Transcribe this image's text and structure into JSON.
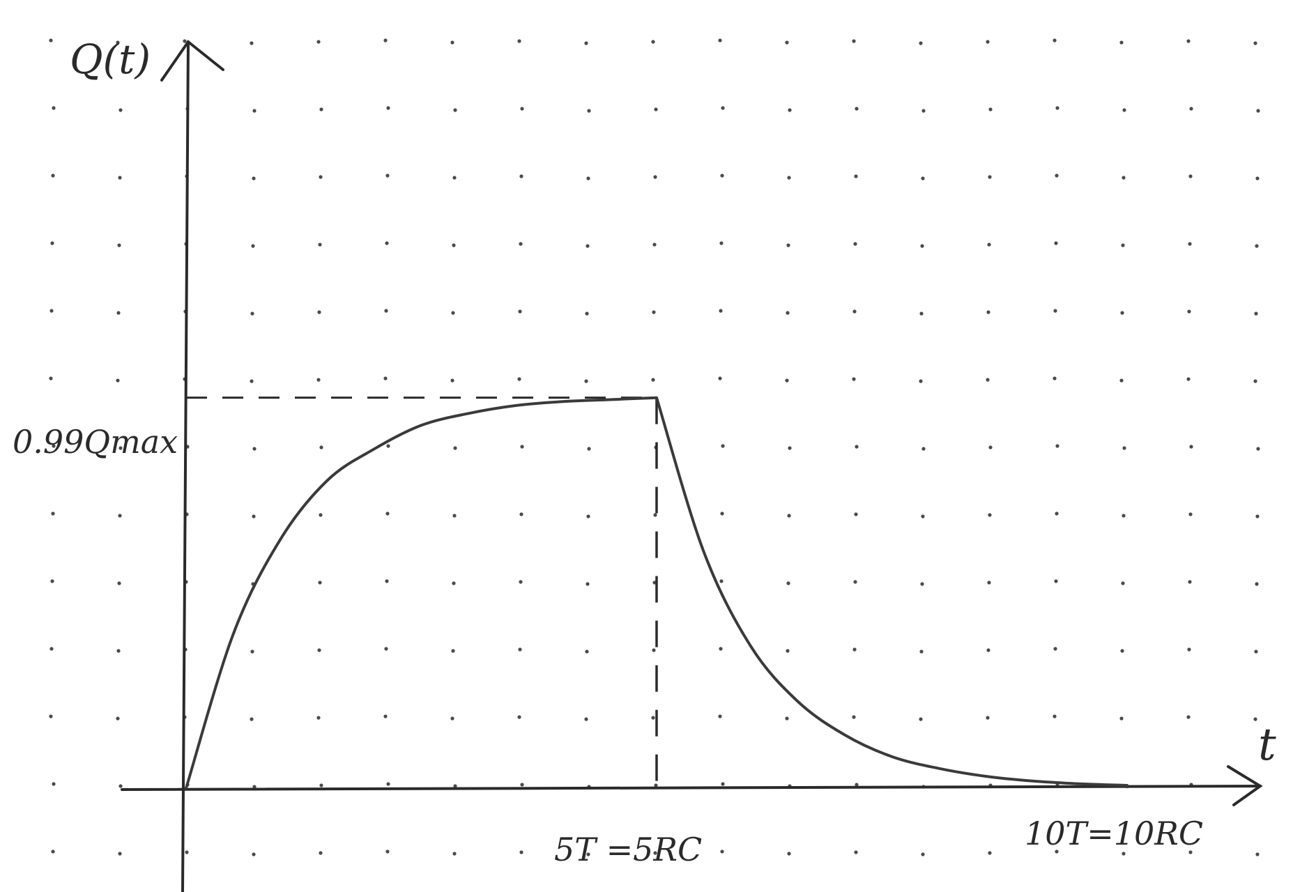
{
  "chart_data": {
    "type": "line",
    "title": "",
    "ylabel": "Q(t)",
    "xlabel": "t",
    "grid": "dot-grid",
    "x_ticks": [
      {
        "x": 5,
        "label": "5T =5RC"
      },
      {
        "x": 10,
        "label": "10T=10RC"
      }
    ],
    "y_ticks": [
      {
        "y": 0.99,
        "label": "0.99Qmax"
      }
    ],
    "reference_lines": [
      {
        "orientation": "horizontal",
        "y": 0.99,
        "x_from": 0,
        "x_to": 5,
        "style": "dashed"
      },
      {
        "orientation": "vertical",
        "x": 5,
        "y_from": 0,
        "y_to": 0.99,
        "style": "dashed"
      }
    ],
    "series": [
      {
        "stroke": "#3a3a3a",
        "points": [
          [
            0,
            0
          ],
          [
            0.5,
            0.39
          ],
          [
            1,
            0.63
          ],
          [
            1.5,
            0.78
          ],
          [
            2,
            0.86
          ],
          [
            2.5,
            0.92
          ],
          [
            3,
            0.95
          ],
          [
            3.5,
            0.97
          ],
          [
            4,
            0.98
          ],
          [
            4.5,
            0.985
          ],
          [
            5,
            0.99
          ],
          [
            5.5,
            0.6
          ],
          [
            6,
            0.36
          ],
          [
            6.5,
            0.22
          ],
          [
            7,
            0.135
          ],
          [
            7.5,
            0.08
          ],
          [
            8,
            0.05
          ],
          [
            8.5,
            0.03
          ],
          [
            9,
            0.018
          ],
          [
            9.5,
            0.011
          ],
          [
            10,
            0.007
          ]
        ]
      }
    ],
    "xlim": [
      0,
      10
    ],
    "ylim": [
      0,
      1
    ]
  }
}
